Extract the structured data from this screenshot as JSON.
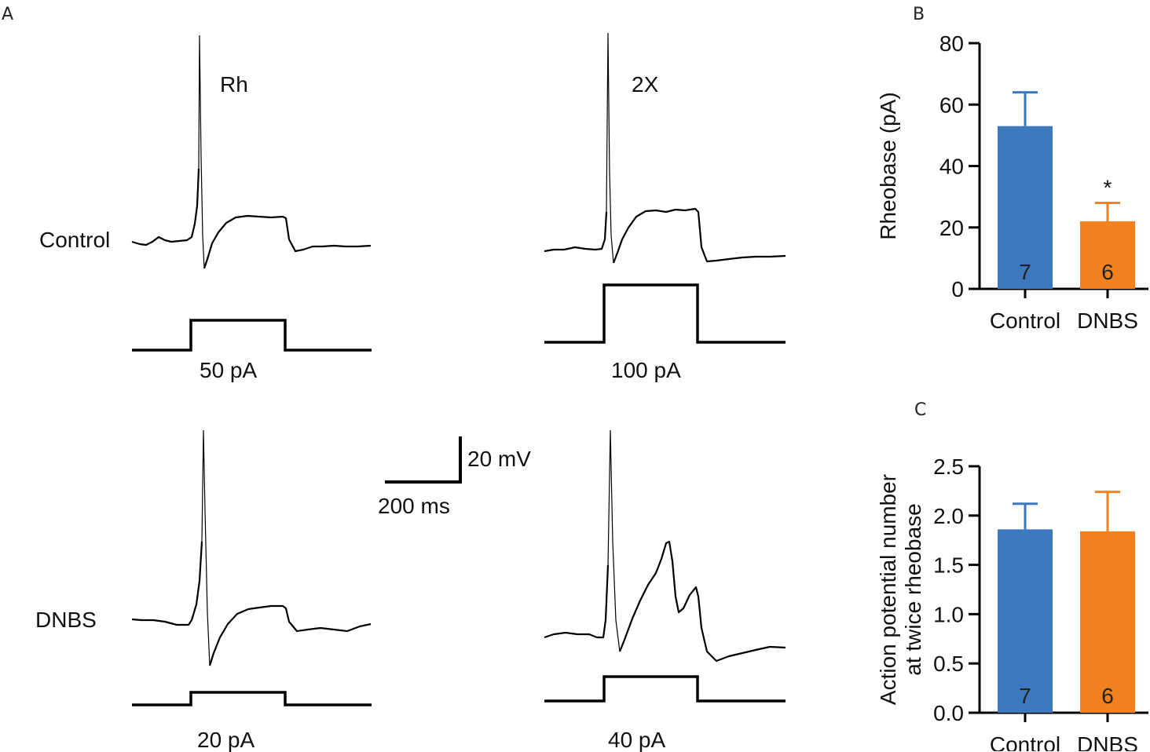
{
  "panels": {
    "a": "A",
    "b": "B",
    "c": "C"
  },
  "traces": {
    "row_labels": [
      "Control",
      "DNBS"
    ],
    "col_labels": [
      "Rh",
      "2X"
    ],
    "stimulus_labels": {
      "control_rh": "50 pA",
      "control_2x": "100 pA",
      "dnbs_rh": "20 pA",
      "dnbs_2x": "40 pA"
    }
  },
  "scale_bar": {
    "voltage": "20 mV",
    "time": "200 ms"
  },
  "colors": {
    "control": "#3c78be",
    "dnbs": "#f2821f"
  },
  "chart_data": [
    {
      "type": "bar",
      "panel": "B",
      "title": "",
      "xlabel": "",
      "ylabel": "Rheobase (pA)",
      "categories": [
        "Control",
        "DNBS"
      ],
      "values": [
        53,
        22
      ],
      "errors": [
        11,
        6
      ],
      "n_labels": [
        "7",
        "6"
      ],
      "significance": [
        "",
        "*"
      ],
      "ylim": [
        0,
        80
      ],
      "yticks": [
        0,
        20,
        40,
        60,
        80
      ],
      "ytick_labels": [
        "0",
        "20",
        "40",
        "60",
        "80"
      ]
    },
    {
      "type": "bar",
      "panel": "C",
      "title": "",
      "xlabel": "",
      "ylabel_lines": [
        "Action potential number",
        "at twice rheobase"
      ],
      "categories": [
        "Control",
        "DNBS"
      ],
      "values": [
        1.86,
        1.84
      ],
      "errors": [
        0.26,
        0.4
      ],
      "n_labels": [
        "7",
        "6"
      ],
      "significance": [
        "",
        ""
      ],
      "ylim": [
        0,
        2.5
      ],
      "yticks": [
        0,
        0.5,
        1.0,
        1.5,
        2.0,
        2.5
      ],
      "ytick_labels": [
        "0.0",
        "0.5",
        "1.0",
        "1.5",
        "2.0",
        "2.5"
      ]
    }
  ]
}
